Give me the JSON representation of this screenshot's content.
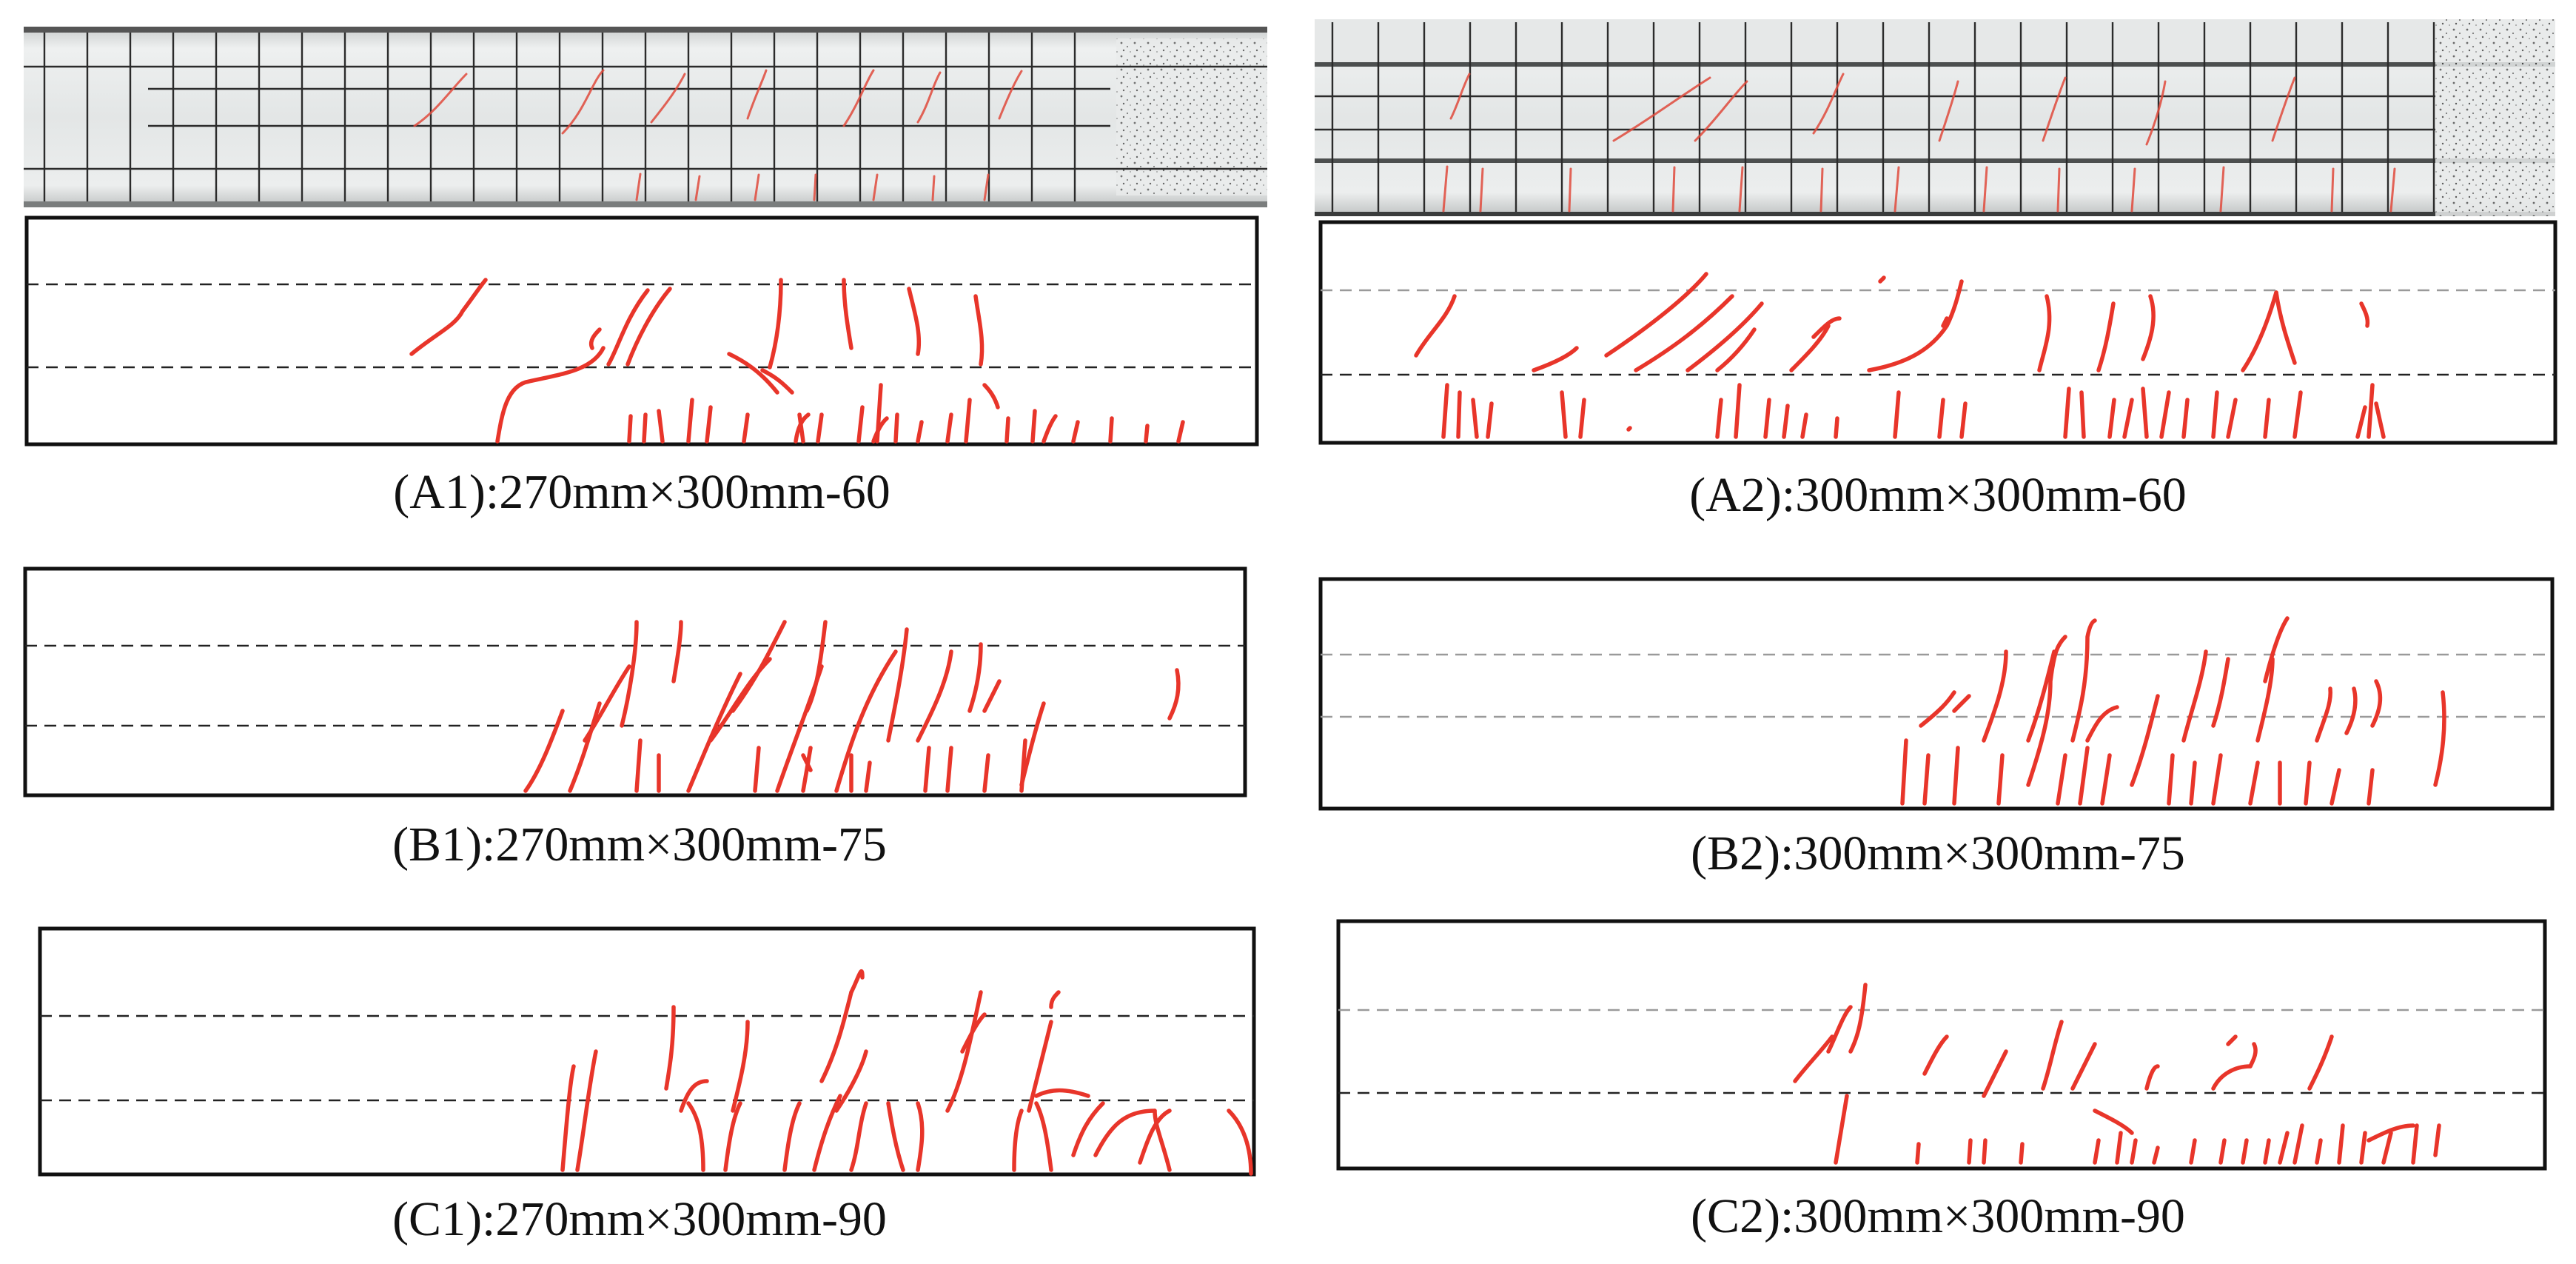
{
  "panels": [
    {
      "id": "A1",
      "caption": "(A1):270mm×300mm-60"
    },
    {
      "id": "A2",
      "caption": "(A2):300mm×300mm-60"
    },
    {
      "id": "B1",
      "caption": "(B1):270mm×300mm-75"
    },
    {
      "id": "B2",
      "caption": "(B2):300mm×300mm-75"
    },
    {
      "id": "C1",
      "caption": "(C1):270mm×300mm-90"
    },
    {
      "id": "C2",
      "caption": "(C2):300mm×300mm-90"
    }
  ],
  "colors": {
    "crack": "#e8352a",
    "frame": "#111111",
    "concrete": "#d9dcdc"
  }
}
